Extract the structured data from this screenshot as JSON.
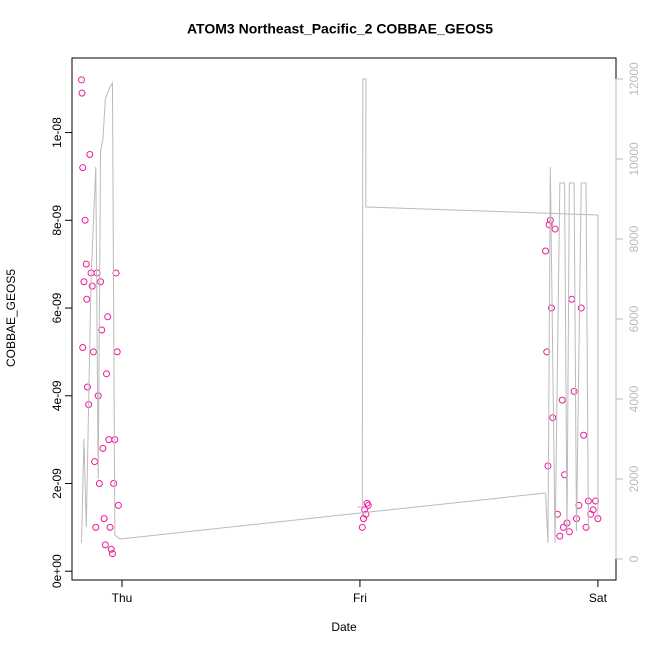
{
  "chart_data": {
    "type": "scatter",
    "title": "ATOM3 Northeast_Pacific_2 COBBAE_GEOS5",
    "x_label": "Date",
    "y_label": "COBBAE_GEOS5",
    "xlim": [
      -0.21,
      2.076
    ],
    "xticks": [
      {
        "value": 0,
        "label": "Thu"
      },
      {
        "value": 1,
        "label": "Fri"
      },
      {
        "value": 2,
        "label": "Sat"
      }
    ],
    "ylim": [
      -2e-10,
      1.17e-08
    ],
    "yticks": [
      {
        "value": 0,
        "label": "0e+00"
      },
      {
        "value": 2e-09,
        "label": "2e-09"
      },
      {
        "value": 4e-09,
        "label": "4e-09"
      },
      {
        "value": 6e-09,
        "label": "6e-09"
      },
      {
        "value": 8e-09,
        "label": "8e-09"
      },
      {
        "value": 1e-08,
        "label": "1e-08"
      }
    ],
    "y2lim": [
      -525,
      12525
    ],
    "y2ticks": [
      0,
      2000,
      4000,
      6000,
      8000,
      10000,
      12000
    ],
    "series": [
      {
        "type": "scatter",
        "color": "#f0189a",
        "x": [
          -0.17,
          -0.168,
          -0.165,
          -0.165,
          -0.16,
          -0.155,
          -0.15,
          -0.148,
          -0.145,
          -0.14,
          -0.135,
          -0.13,
          -0.125,
          -0.12,
          -0.115,
          -0.11,
          -0.105,
          -0.1,
          -0.095,
          -0.09,
          -0.085,
          -0.08,
          -0.075,
          -0.07,
          -0.065,
          -0.06,
          -0.055,
          -0.05,
          -0.045,
          -0.04,
          -0.035,
          -0.03,
          -0.025,
          -0.02,
          -0.015,
          1.01,
          1.015,
          1.02,
          1.025,
          1.03,
          1.035,
          1.78,
          1.785,
          1.79,
          1.795,
          1.8,
          1.805,
          1.81,
          1.82,
          1.83,
          1.84,
          1.85,
          1.855,
          1.86,
          1.87,
          1.88,
          1.89,
          1.9,
          1.91,
          1.92,
          1.93,
          1.94,
          1.95,
          1.96,
          1.97,
          1.98,
          1.99,
          2.0
        ],
        "values": [
          1.12e-08,
          1.09e-08,
          9.2e-09,
          5.1e-09,
          6.6e-09,
          8e-09,
          7e-09,
          6.2e-09,
          4.2e-09,
          3.8e-09,
          9.5e-09,
          6.8e-09,
          6.5e-09,
          5e-09,
          2.5e-09,
          1e-09,
          6.8e-09,
          4e-09,
          2e-09,
          6.6e-09,
          5.5e-09,
          2.8e-09,
          1.2e-09,
          6e-10,
          4.5e-09,
          5.8e-09,
          3e-09,
          1e-09,
          5e-10,
          4e-10,
          2e-09,
          3e-09,
          6.8e-09,
          5e-09,
          1.5e-09,
          1e-09,
          1.2e-09,
          1.4e-09,
          1.3e-09,
          1.55e-09,
          1.5e-09,
          7.3e-09,
          5e-09,
          2.4e-09,
          7.9e-09,
          8e-09,
          6e-09,
          3.5e-09,
          7.8e-09,
          1.3e-09,
          8e-10,
          3.9e-09,
          1e-09,
          2.2e-09,
          1.1e-09,
          9e-10,
          6.2e-09,
          4.1e-09,
          1.2e-09,
          1.5e-09,
          6e-09,
          3.1e-09,
          1e-09,
          1.6e-09,
          1.3e-09,
          1.4e-09,
          1.6e-09,
          1.2e-09
        ]
      },
      {
        "type": "line",
        "axis": "y2",
        "color": "#bbbbbb",
        "x": [
          -0.17,
          -0.16,
          -0.15,
          -0.13,
          -0.11,
          -0.1,
          -0.09,
          -0.08,
          -0.07,
          -0.05,
          -0.04,
          -0.03,
          -0.01,
          1.78,
          null,
          0.99,
          1.01,
          1.012,
          1.025,
          1.025,
          2.0,
          2.0,
          null,
          1.78,
          1.79,
          1.8,
          1.82,
          1.84,
          1.86,
          1.87,
          1.88,
          1.9,
          1.91,
          1.93,
          1.95,
          1.96
        ],
        "values": [
          400,
          3000,
          800,
          7000,
          9800,
          2000,
          10200,
          10500,
          11500,
          11800,
          11900,
          600,
          500,
          1650,
          null,
          1300,
          1300,
          12000,
          12000,
          8800,
          8600,
          1000,
          null,
          1650,
          400,
          9800,
          400,
          9400,
          9400,
          600,
          9400,
          9400,
          700,
          9400,
          9400,
          800
        ]
      }
    ]
  }
}
